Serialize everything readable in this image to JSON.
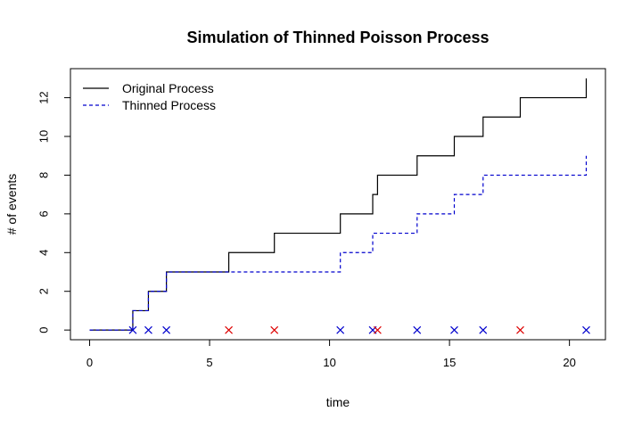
{
  "chart_data": {
    "type": "line",
    "title": "Simulation of Thinned Poisson Process",
    "xlabel": "time",
    "ylabel": "# of events",
    "xlim": [
      -0.8,
      21.5
    ],
    "ylim": [
      -0.5,
      13.5
    ],
    "xticks": [
      0,
      5,
      10,
      15,
      20
    ],
    "yticks": [
      0,
      2,
      4,
      6,
      8,
      10,
      12
    ],
    "legend_position": "top-left",
    "series": [
      {
        "name": "Original Process",
        "color": "#000000",
        "line_style": "solid",
        "step": true,
        "x": [
          0,
          1.8,
          2.45,
          3.2,
          5.8,
          7.7,
          10.45,
          11.8,
          12.0,
          13.65,
          15.2,
          16.4,
          17.95,
          20.7
        ],
        "y": [
          0,
          1,
          2,
          3,
          4,
          5,
          6,
          7,
          8,
          9,
          10,
          11,
          12,
          13
        ]
      },
      {
        "name": "Thinned Process",
        "color": "#0000cd",
        "line_style": "dashed",
        "step": true,
        "x": [
          0,
          1.8,
          2.45,
          3.2,
          10.45,
          11.8,
          13.65,
          15.2,
          16.4,
          20.7
        ],
        "y": [
          0,
          1,
          2,
          3,
          4,
          5,
          6,
          7,
          8,
          9
        ]
      }
    ],
    "markers": [
      {
        "x": 1.8,
        "y": 0,
        "color": "#0000cd",
        "symbol": "x"
      },
      {
        "x": 2.45,
        "y": 0,
        "color": "#0000cd",
        "symbol": "x"
      },
      {
        "x": 3.2,
        "y": 0,
        "color": "#0000cd",
        "symbol": "x"
      },
      {
        "x": 5.8,
        "y": 0,
        "color": "#dd0000",
        "symbol": "x"
      },
      {
        "x": 7.7,
        "y": 0,
        "color": "#dd0000",
        "symbol": "x"
      },
      {
        "x": 10.45,
        "y": 0,
        "color": "#0000cd",
        "symbol": "x"
      },
      {
        "x": 11.8,
        "y": 0,
        "color": "#0000cd",
        "symbol": "x"
      },
      {
        "x": 12.0,
        "y": 0,
        "color": "#dd0000",
        "symbol": "x"
      },
      {
        "x": 13.65,
        "y": 0,
        "color": "#0000cd",
        "symbol": "x"
      },
      {
        "x": 15.2,
        "y": 0,
        "color": "#0000cd",
        "symbol": "x"
      },
      {
        "x": 16.4,
        "y": 0,
        "color": "#0000cd",
        "symbol": "x"
      },
      {
        "x": 17.95,
        "y": 0,
        "color": "#dd0000",
        "symbol": "x"
      },
      {
        "x": 20.7,
        "y": 0,
        "color": "#0000cd",
        "symbol": "x"
      }
    ]
  }
}
